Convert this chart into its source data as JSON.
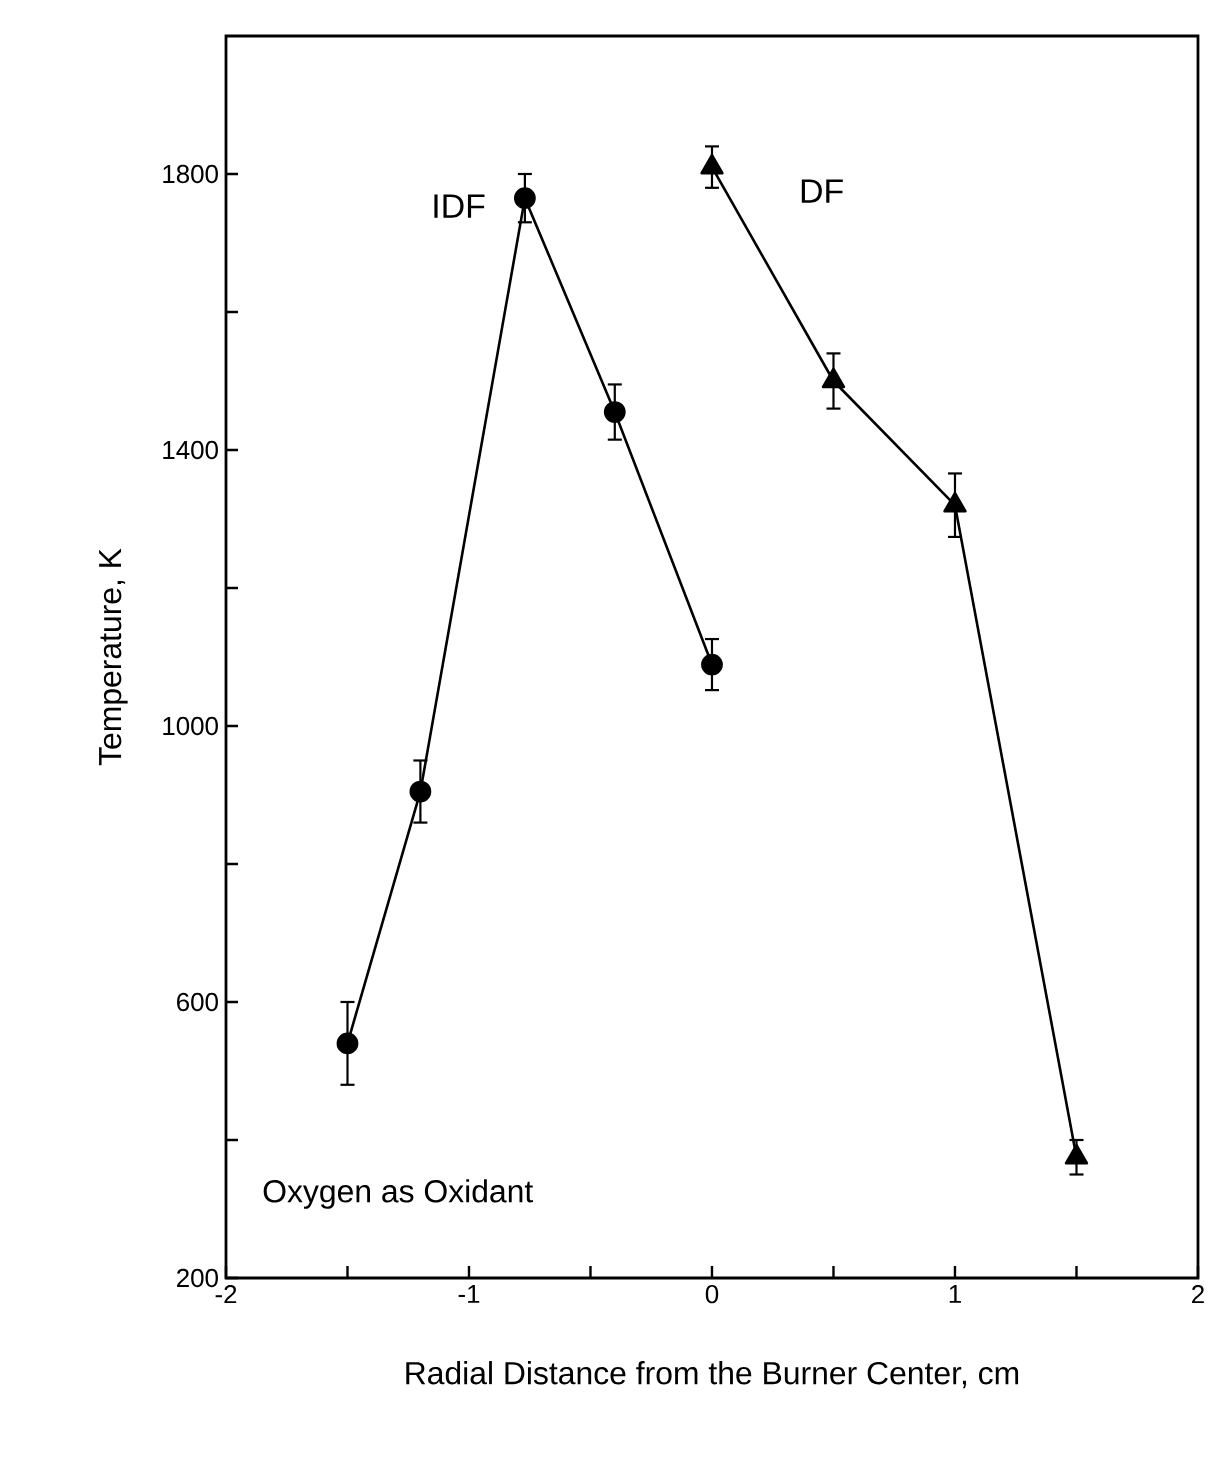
{
  "chart_data": {
    "type": "line",
    "xlabel": "Radial Distance from the Burner Center, cm",
    "ylabel": "Temperature, K",
    "xlim": [
      -2,
      2
    ],
    "ylim": [
      200,
      2000
    ],
    "xticks": [
      -2,
      {
        "value": -1.5,
        "label": null
      },
      -1,
      {
        "value": -0.5,
        "label": null
      },
      0,
      {
        "value": 0.5,
        "label": null
      },
      1,
      {
        "value": 1.5,
        "label": null
      },
      2
    ],
    "yticks": [
      200,
      {
        "value": 400,
        "label": null
      },
      600,
      {
        "value": 800,
        "label": null
      },
      1000,
      {
        "value": 1200,
        "label": null
      },
      1400,
      {
        "value": 1600,
        "label": null
      },
      1800
    ],
    "line_style": "solid",
    "series": [
      {
        "name": "IDF",
        "color": "#000000",
        "marker": "circle",
        "x": [
          -1.5,
          -1.2,
          -0.77,
          -0.4,
          0
        ],
        "values": [
          540,
          905,
          1765,
          1455,
          1089
        ],
        "errors": [
          60,
          45,
          35,
          40,
          37
        ]
      },
      {
        "name": "DF",
        "color": "#000000",
        "marker": "triangle",
        "x": [
          0,
          0.5,
          1,
          1.5
        ],
        "values": [
          1810,
          1500,
          1320,
          375
        ],
        "errors": [
          30,
          40,
          46,
          25
        ]
      }
    ],
    "annotations": [
      "Oxygen as Oxidant"
    ]
  }
}
